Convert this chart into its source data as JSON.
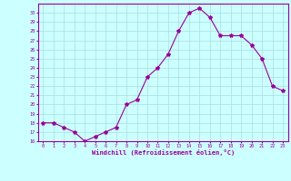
{
  "x": [
    0,
    1,
    2,
    3,
    4,
    5,
    6,
    7,
    8,
    9,
    10,
    11,
    12,
    13,
    14,
    15,
    16,
    17,
    18,
    19,
    20,
    21,
    22,
    23
  ],
  "y": [
    18,
    18,
    17.5,
    17,
    16,
    16.5,
    17,
    17.5,
    20,
    20.5,
    23,
    24,
    25.5,
    28,
    30,
    30.5,
    29.5,
    27.5,
    27.5,
    27.5,
    26.5,
    25,
    22,
    21.5
  ],
  "line_color": "#990099",
  "marker": "*",
  "marker_size": 3,
  "bg_color": "#ccffff",
  "grid_color": "#aadddd",
  "xlabel": "Windchill (Refroidissement éolien,°C)",
  "xlabel_color": "#990099",
  "tick_color": "#990099",
  "ylim": [
    16,
    31
  ],
  "yticks": [
    16,
    17,
    18,
    19,
    20,
    21,
    22,
    23,
    24,
    25,
    26,
    27,
    28,
    29,
    30
  ],
  "xticks": [
    0,
    1,
    2,
    3,
    4,
    5,
    6,
    7,
    8,
    9,
    10,
    11,
    12,
    13,
    14,
    15,
    16,
    17,
    18,
    19,
    20,
    21,
    22,
    23
  ],
  "xtick_labels": [
    "0",
    "1",
    "2",
    "3",
    "4",
    "5",
    "6",
    "7",
    "8",
    "9",
    "10",
    "11",
    "12",
    "13",
    "14",
    "15",
    "16",
    "17",
    "18",
    "19",
    "20",
    "21",
    "22",
    "23"
  ]
}
